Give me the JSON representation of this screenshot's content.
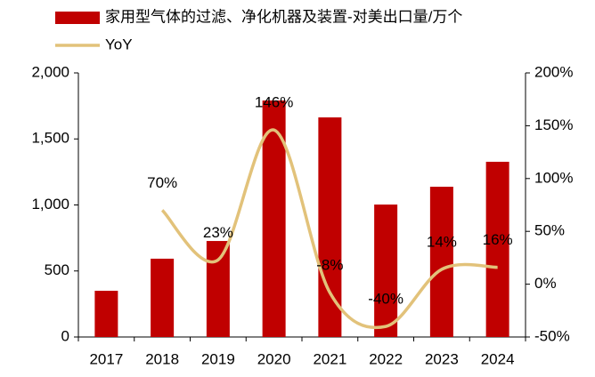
{
  "chart_data": {
    "type": "bar_line",
    "categories": [
      "2017",
      "2018",
      "2019",
      "2020",
      "2021",
      "2022",
      "2023",
      "2024"
    ],
    "series": [
      {
        "name": "家用型气体的过滤、净化机器及装置-对美出口量/万个",
        "type": "bar",
        "color": "#c00000",
        "axis": "y",
        "values": [
          350,
          593,
          727,
          1791,
          1663,
          1003,
          1138,
          1327
        ]
      },
      {
        "name": "YoY",
        "type": "line",
        "color": "#e2c27a",
        "axis": "y2",
        "values": [
          null,
          70,
          23,
          146,
          -8,
          -40,
          14,
          16
        ],
        "value_labels": [
          null,
          "70%",
          "23%",
          "146%",
          "-8%",
          "-40%",
          "14%",
          "16%"
        ]
      }
    ],
    "ylim": [
      0,
      2000
    ],
    "yticks": [
      0,
      500,
      {
        "value": 1000,
        "label": "1,000"
      },
      {
        "value": 1500,
        "label": "1,500"
      },
      {
        "value": 2000,
        "label": "2,000"
      }
    ],
    "y2lim": [
      -50,
      200
    ],
    "y2ticks": [
      {
        "value": -50,
        "label": "-50%"
      },
      {
        "value": 0,
        "label": "0%"
      },
      {
        "value": 50,
        "label": "50%"
      },
      {
        "value": 100,
        "label": "100%"
      },
      {
        "value": 150,
        "label": "150%"
      },
      {
        "value": 200,
        "label": "200%"
      }
    ],
    "legend": "top-left"
  }
}
